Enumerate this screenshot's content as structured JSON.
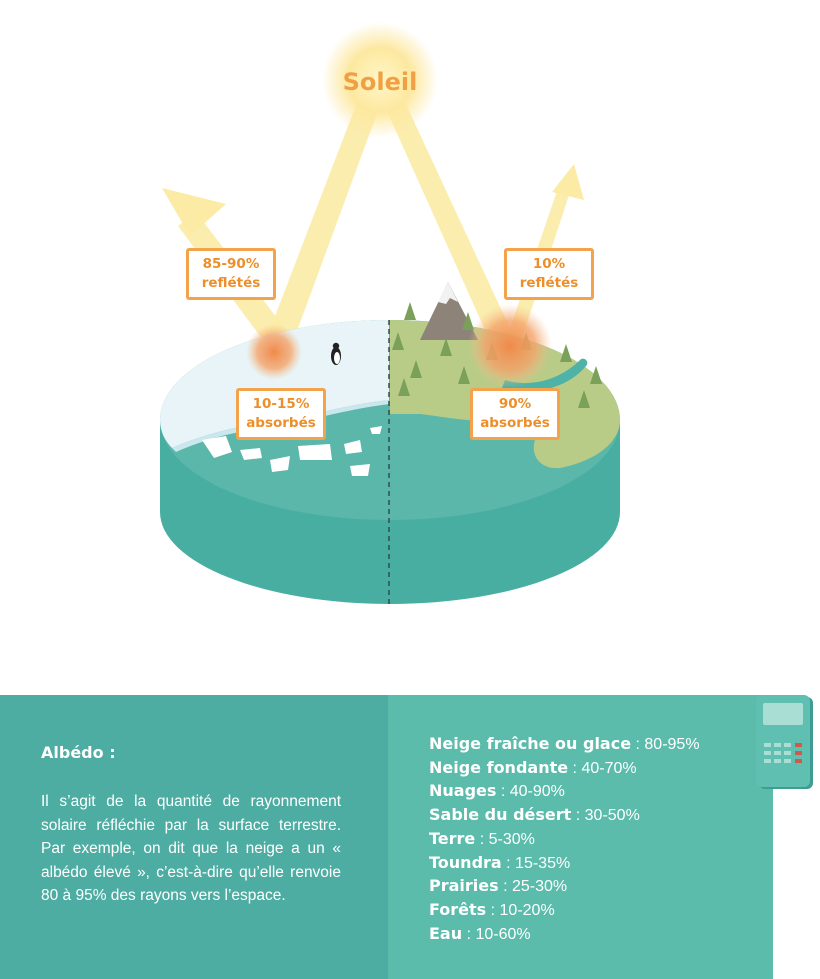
{
  "diagram": {
    "sun_label": "Soleil",
    "labels": {
      "left_reflected": [
        "85-90%",
        "reflétés"
      ],
      "left_absorbed": [
        "10-15%",
        "absorbés"
      ],
      "right_reflected": [
        "10%",
        "reflétés"
      ],
      "right_absorbed": [
        "90%",
        "absorbés"
      ]
    },
    "colors": {
      "sun": "#fde9a1",
      "beam": "#fbeba5",
      "label_border": "#f3a34c",
      "label_text": "#ec8f2a",
      "water_side": "#48aea2",
      "water_top": "#5ab7a9",
      "ice": "#e8f4f7",
      "land": "#b8cc88",
      "forest": "#7aa05a"
    }
  },
  "info": {
    "title": "Albédo :",
    "description": "Il s’agit de la quantité de rayonnement solaire réfléchie par la surface terrestre. Par exemple, on dit que la neige a un « albédo élevé », c’est-à-dire qu’elle renvoie 80 à 95% des rayons vers l’espace.",
    "items": [
      {
        "material": "Neige fraîche ou glace",
        "value": ": 80-95%"
      },
      {
        "material": "Neige fondante",
        "value": ": 40-70%"
      },
      {
        "material": "Nuages",
        "value": ": 40-90%"
      },
      {
        "material": "Sable du désert",
        "value": ": 30-50%"
      },
      {
        "material": "Terre",
        "value": ": 5-30%"
      },
      {
        "material": "Toundra",
        "value": ": 15-35%"
      },
      {
        "material": "Prairies",
        "value": ": 25-30%"
      },
      {
        "material": "Forêts",
        "value": ": 10-20%"
      },
      {
        "material": "Eau",
        "value": ": 10-60%"
      }
    ],
    "colors": {
      "left_panel": "#4eada3",
      "right_panel": "#5bbcac",
      "text": "#ffffff"
    },
    "calculator_icon": "calculator-icon"
  }
}
